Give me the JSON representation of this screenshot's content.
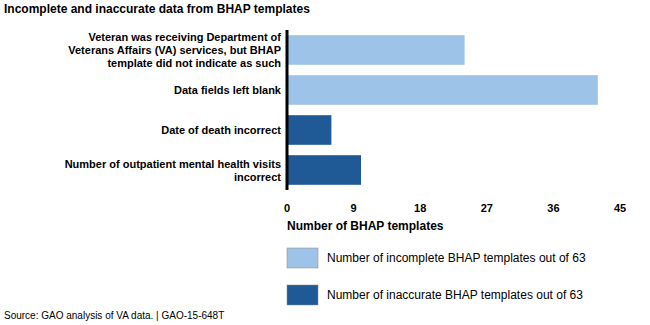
{
  "chart_data": {
    "type": "bar",
    "orientation": "horizontal",
    "title": "Incomplete and inaccurate data from BHAP templates",
    "categories": [
      "Veteran was receiving Department of Veterans Affairs (VA) services, but BHAP template did not indicate as such",
      "Data fields left blank",
      "Date of death incorrect",
      "Number of outpatient mental health visits incorrect"
    ],
    "series": [
      {
        "name": "Number of incomplete BHAP templates out of 63",
        "color": "#9dc3e8",
        "values": [
          24,
          42,
          null,
          null
        ]
      },
      {
        "name": "Number of inaccurate BHAP templates out of 63",
        "color": "#1f5a96",
        "values": [
          null,
          null,
          6,
          10
        ]
      }
    ],
    "x_label": "Number of BHAP templates",
    "xlim": [
      0,
      45
    ],
    "xticks": [
      0,
      9,
      18,
      27,
      36,
      45
    ],
    "grid": false,
    "legend": "bottom",
    "source": "Source: GAO analysis of VA data. | GAO-15-648T"
  }
}
